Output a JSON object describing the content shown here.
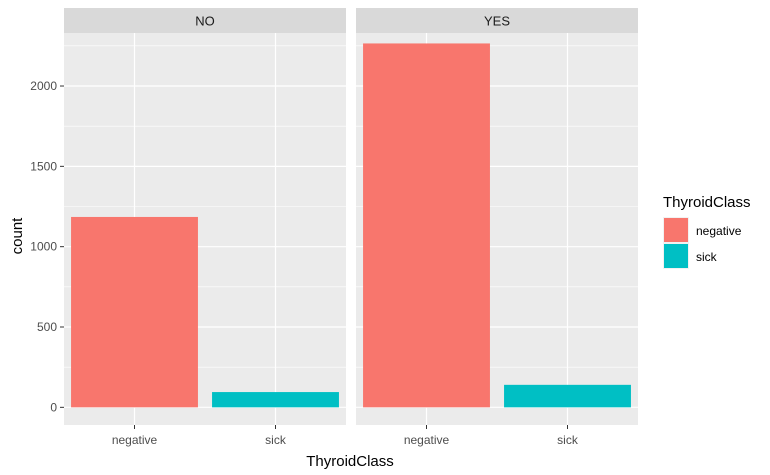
{
  "chart_data": {
    "type": "bar",
    "xlabel": "ThyroidClass",
    "ylabel": "count",
    "ylim": [
      -110,
      2330
    ],
    "yticks": [
      0,
      500,
      1000,
      1500,
      2000
    ],
    "grid": true,
    "legend": {
      "title": "ThyroidClass",
      "placement": "right"
    },
    "categories": [
      "negative",
      "sick"
    ],
    "colors": {
      "negative": "#F8766D",
      "sick": "#00BFC4"
    },
    "facets": [
      {
        "label": "NO",
        "values": [
          1185,
          95
        ]
      },
      {
        "label": "YES",
        "values": [
          2265,
          140
        ]
      }
    ]
  }
}
